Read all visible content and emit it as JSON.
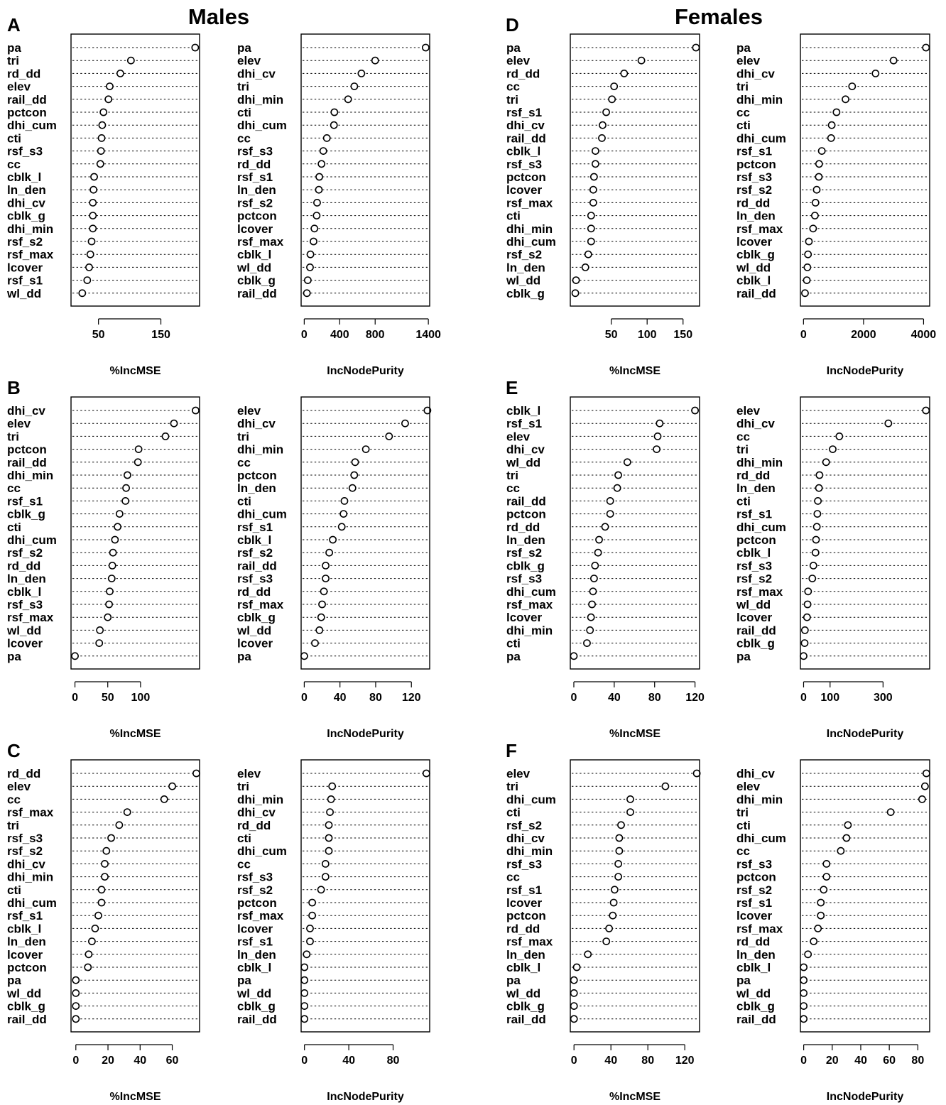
{
  "figure": {
    "group_titles": [
      "Males",
      "Females"
    ],
    "panel_letters": [
      "A",
      "B",
      "C",
      "D",
      "E",
      "F"
    ]
  },
  "chart_data": [
    {
      "panel": "A",
      "group": "Males",
      "type": "dotchart",
      "xlabel": "%IncMSE",
      "xlim": [
        6,
        212
      ],
      "xticks": [
        50,
        150
      ],
      "labels": [
        "pa",
        "tri",
        "rd_dd",
        "elev",
        "rail_dd",
        "pctcon",
        "dhi_cum",
        "cti",
        "rsf_s3",
        "cc",
        "cblk_l",
        "ln_den",
        "dhi_cv",
        "cblk_g",
        "dhi_min",
        "rsf_s2",
        "rsf_max",
        "lcover",
        "rsf_s1",
        "wl_dd"
      ],
      "values": [
        205,
        102,
        85,
        68,
        66,
        58,
        56,
        55,
        54,
        53,
        43,
        42,
        41,
        41,
        41,
        39,
        37,
        35,
        32,
        24
      ]
    },
    {
      "panel": "A",
      "group": "Males",
      "type": "dotchart",
      "xlabel": "IncNodePurity",
      "xlim": [
        -35,
        1415
      ],
      "xticks": [
        0,
        400,
        800,
        1400
      ],
      "labels": [
        "pa",
        "elev",
        "dhi_cv",
        "tri",
        "dhi_min",
        "cti",
        "dhi_cum",
        "cc",
        "rsf_s3",
        "rd_dd",
        "rsf_s1",
        "ln_den",
        "rsf_s2",
        "pctcon",
        "lcover",
        "rsf_max",
        "cblk_l",
        "wl_dd",
        "cblk_g",
        "rail_dd"
      ],
      "values": [
        1370,
        800,
        645,
        565,
        495,
        340,
        335,
        255,
        215,
        195,
        170,
        165,
        145,
        140,
        115,
        105,
        70,
        65,
        40,
        30
      ]
    },
    {
      "panel": "B",
      "group": "Males",
      "type": "dotchart",
      "xlabel": "%IncMSE",
      "xlim": [
        -6,
        190
      ],
      "xticks": [
        0,
        50,
        100
      ],
      "labels": [
        "dhi_cv",
        "elev",
        "tri",
        "pctcon",
        "rail_dd",
        "dhi_min",
        "cc",
        "rsf_s1",
        "cblk_g",
        "cti",
        "dhi_cum",
        "rsf_s2",
        "rd_dd",
        "ln_den",
        "cblk_l",
        "rsf_s3",
        "rsf_max",
        "wl_dd",
        "lcover",
        "pa"
      ],
      "values": [
        184,
        151,
        138,
        97,
        96,
        80,
        78,
        77,
        68,
        65,
        61,
        58,
        57,
        56,
        53,
        52,
        50,
        38,
        37,
        0
      ]
    },
    {
      "panel": "B",
      "group": "Males",
      "type": "dotchart",
      "xlabel": "IncNodePurity",
      "xlim": [
        -3.5,
        140.5
      ],
      "xticks": [
        0,
        40,
        80,
        120
      ],
      "labels": [
        "elev",
        "dhi_cv",
        "tri",
        "dhi_min",
        "cc",
        "pctcon",
        "ln_den",
        "cti",
        "dhi_cum",
        "rsf_s1",
        "cblk_l",
        "rsf_s2",
        "rail_dd",
        "rsf_s3",
        "rd_dd",
        "rsf_max",
        "cblk_g",
        "wl_dd",
        "lcover",
        "pa"
      ],
      "values": [
        138,
        113,
        95,
        69,
        57,
        56,
        54,
        45,
        44,
        42,
        32,
        28,
        24,
        24,
        22,
        20,
        19,
        17,
        12,
        0
      ]
    },
    {
      "panel": "C",
      "group": "Males",
      "type": "dotchart",
      "xlabel": "%IncMSE",
      "xlim": [
        -3,
        77
      ],
      "xticks": [
        0,
        20,
        40,
        60
      ],
      "labels": [
        "rd_dd",
        "elev",
        "cc",
        "rsf_max",
        "tri",
        "rsf_s3",
        "rsf_s2",
        "dhi_cv",
        "dhi_min",
        "cti",
        "dhi_cum",
        "rsf_s1",
        "cblk_l",
        "ln_den",
        "lcover",
        "pctcon",
        "pa",
        "wl_dd",
        "cblk_g",
        "rail_dd"
      ],
      "values": [
        75,
        60,
        55,
        32,
        27,
        22,
        19,
        18,
        18,
        16,
        16,
        14,
        12,
        10,
        8,
        7.5,
        0,
        0,
        0,
        0
      ]
    },
    {
      "panel": "C",
      "group": "Males",
      "type": "dotchart",
      "xlabel": "IncNodePurity",
      "xlim": [
        -3,
        113
      ],
      "xticks": [
        0,
        40,
        80
      ],
      "labels": [
        "elev",
        "tri",
        "dhi_min",
        "dhi_cv",
        "rd_dd",
        "cti",
        "dhi_cum",
        "cc",
        "rsf_s3",
        "rsf_s2",
        "pctcon",
        "rsf_max",
        "lcover",
        "rsf_s1",
        "ln_den",
        "cblk_l",
        "pa",
        "wl_dd",
        "cblk_g",
        "rail_dd"
      ],
      "values": [
        110,
        25,
        24,
        23,
        22,
        22,
        22,
        19,
        19,
        15,
        7,
        7,
        5,
        5,
        2,
        0,
        0,
        0,
        0,
        0
      ]
    },
    {
      "panel": "D",
      "group": "Females",
      "type": "dotchart",
      "xlabel": "%IncMSE",
      "xlim": [
        -7,
        173
      ],
      "xticks": [
        50,
        100,
        150
      ],
      "labels": [
        "pa",
        "elev",
        "rd_dd",
        "cc",
        "tri",
        "rsf_s1",
        "dhi_cv",
        "rail_dd",
        "cblk_l",
        "rsf_s3",
        "pctcon",
        "lcover",
        "rsf_max",
        "cti",
        "dhi_min",
        "dhi_cum",
        "rsf_s2",
        "ln_den",
        "wl_dd",
        "cblk_g"
      ],
      "values": [
        168,
        92,
        68,
        54,
        51,
        43,
        38,
        37,
        28,
        28,
        26,
        25,
        25,
        22,
        22,
        22,
        18,
        14,
        1,
        0
      ]
    },
    {
      "panel": "E",
      "group": "Females",
      "type": "dotchart",
      "xlabel": "%IncMSE",
      "xlim": [
        -3.5,
        124.5
      ],
      "xticks": [
        0,
        40,
        80,
        120
      ],
      "labels": [
        "cblk_l",
        "rsf_s1",
        "elev",
        "dhi_cv",
        "wl_dd",
        "tri",
        "cc",
        "rail_dd",
        "pctcon",
        "rd_dd",
        "ln_den",
        "rsf_s2",
        "cblk_g",
        "rsf_s3",
        "dhi_cum",
        "rsf_max",
        "lcover",
        "dhi_min",
        "cti",
        "pa"
      ],
      "values": [
        120,
        85,
        83,
        82,
        53,
        44,
        43,
        36,
        36,
        31,
        25,
        24,
        21,
        20,
        19,
        18,
        17,
        16,
        13,
        0
      ]
    },
    {
      "panel": "F",
      "group": "Females",
      "type": "dotchart",
      "xlabel": "%IncMSE",
      "xlim": [
        -4,
        136
      ],
      "xticks": [
        0,
        40,
        80,
        120
      ],
      "labels": [
        "elev",
        "tri",
        "dhi_cum",
        "cti",
        "rsf_s2",
        "dhi_cv",
        "dhi_min",
        "rsf_s3",
        "cc",
        "rsf_s1",
        "lcover",
        "pctcon",
        "rd_dd",
        "rsf_max",
        "ln_den",
        "cblk_l",
        "pa",
        "wl_dd",
        "cblk_g",
        "rail_dd"
      ],
      "values": [
        133,
        99,
        61,
        61,
        51,
        49,
        49,
        48,
        48,
        44,
        43,
        42,
        38,
        35,
        15,
        3,
        0,
        0,
        0,
        0
      ]
    },
    {
      "panel": "D",
      "group": "Females",
      "type": "dotchart",
      "xlabel": "IncNodePurity",
      "xlim": [
        -103,
        4203
      ],
      "xticks": [
        0,
        2000,
        4000
      ],
      "labels": [
        "pa",
        "elev",
        "dhi_cv",
        "tri",
        "dhi_min",
        "cc",
        "cti",
        "dhi_cum",
        "rsf_s1",
        "pctcon",
        "rsf_s3",
        "rsf_s2",
        "rd_dd",
        "ln_den",
        "rsf_max",
        "lcover",
        "cblk_g",
        "wl_dd",
        "cblk_l",
        "rail_dd"
      ],
      "values": [
        4080,
        3000,
        2400,
        1620,
        1400,
        1100,
        940,
        920,
        610,
        520,
        510,
        440,
        400,
        380,
        320,
        180,
        150,
        130,
        110,
        50
      ]
    },
    {
      "panel": "E",
      "group": "Females",
      "type": "dotchart",
      "xlabel": "IncNodePurity",
      "xlim": [
        -12,
        476
      ],
      "xticks": [
        0,
        100,
        300
      ],
      "labels": [
        "elev",
        "dhi_cv",
        "cc",
        "tri",
        "dhi_min",
        "rd_dd",
        "ln_den",
        "cti",
        "rsf_s1",
        "dhi_cum",
        "pctcon",
        "cblk_l",
        "rsf_s3",
        "rsf_s2",
        "rsf_max",
        "wl_dd",
        "lcover",
        "rail_dd",
        "cblk_g",
        "pa"
      ],
      "values": [
        462,
        320,
        135,
        110,
        85,
        60,
        58,
        54,
        52,
        50,
        47,
        45,
        37,
        33,
        17,
        15,
        13,
        5,
        4,
        0
      ]
    },
    {
      "panel": "F",
      "group": "Females",
      "type": "dotchart",
      "xlabel": "IncNodePurity",
      "xlim": [
        -2.3,
        88.3
      ],
      "xticks": [
        0,
        20,
        40,
        60,
        80
      ],
      "labels": [
        "dhi_cv",
        "elev",
        "dhi_min",
        "tri",
        "cti",
        "dhi_cum",
        "cc",
        "rsf_s3",
        "pctcon",
        "rsf_s2",
        "rsf_s1",
        "lcover",
        "rsf_max",
        "rd_dd",
        "ln_den",
        "cblk_l",
        "pa",
        "wl_dd",
        "cblk_g",
        "rail_dd"
      ],
      "values": [
        86,
        85,
        83,
        61,
        31,
        30,
        26,
        16,
        16,
        14,
        12,
        12,
        10,
        7,
        3,
        0,
        0,
        0,
        0,
        0
      ]
    }
  ]
}
